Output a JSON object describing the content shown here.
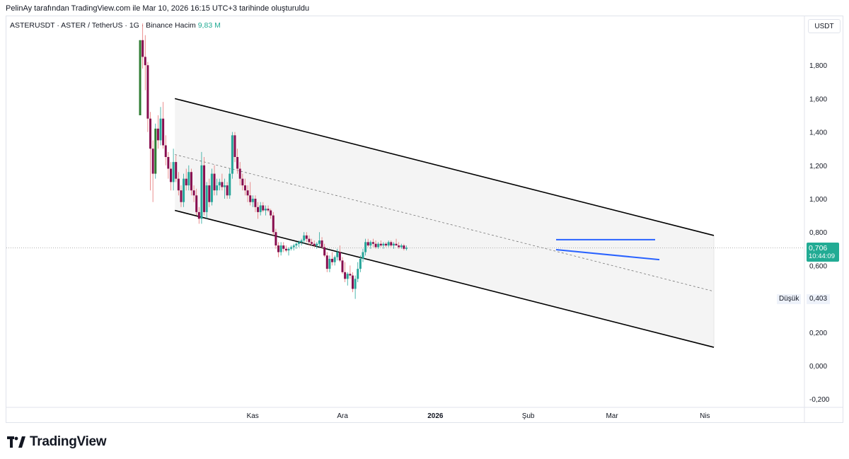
{
  "header": {
    "credit": "PelinAy tarafından TradingView.com ile Mar 10, 2026 16:15 UTC+3 tarihinde oluşturuldu",
    "symbol": "ASTERUSDT · ASTER / TetherUS · 1G · Binance",
    "volume_label": "Hacim",
    "volume_value": "9,83 M"
  },
  "currency": "USDT",
  "price_badge": {
    "price": "0,706",
    "countdown": "10:44:09"
  },
  "low_marker": {
    "label": "Düşük",
    "value": "0,403"
  },
  "brand": "TradingView",
  "colors": {
    "up": "#22ab94",
    "up_strong": "#2e7d32",
    "down": "#880e4f",
    "channel": "#000000",
    "flag": "#2962ff"
  },
  "chart_data": {
    "type": "candlestick",
    "title": "",
    "xlabel": "",
    "ylabel": "",
    "ylim": [
      -0.25,
      2.0
    ],
    "y_ticks": [
      "1,800",
      "1,600",
      "1,400",
      "1,200",
      "1,000",
      "0,800",
      "0,600",
      "0,400",
      "0,200",
      "0,000",
      "-0,200"
    ],
    "y_tick_values": [
      1.8,
      1.6,
      1.4,
      1.2,
      1.0,
      0.8,
      0.6,
      0.4,
      0.2,
      0.0,
      -0.2
    ],
    "x_ticks": [
      {
        "label": "Kas",
        "day": 31
      },
      {
        "label": "Ara",
        "day": 61
      },
      {
        "label": "2026",
        "day": 92
      },
      {
        "label": "Şub",
        "day": 123
      },
      {
        "label": "Mar",
        "day": 151
      },
      {
        "label": "Nis",
        "day": 182
      }
    ],
    "x_start_date": "2025-10-01",
    "last_price": 0.706,
    "low_price": 0.403,
    "channel": {
      "upper": [
        [
          5,
          1.6
        ],
        [
          185,
          0.78
        ]
      ],
      "lower": [
        [
          5,
          0.93
        ],
        [
          185,
          0.11
        ]
      ],
      "mid": [
        [
          5,
          1.265
        ],
        [
          185,
          0.445
        ]
      ]
    },
    "flag": {
      "upper": [
        [
          124,
          0.755
        ],
        [
          160,
          0.755
        ]
      ],
      "lower": [
        [
          124,
          0.695
        ],
        [
          160,
          0.635
        ]
      ]
    },
    "candles": []
  }
}
